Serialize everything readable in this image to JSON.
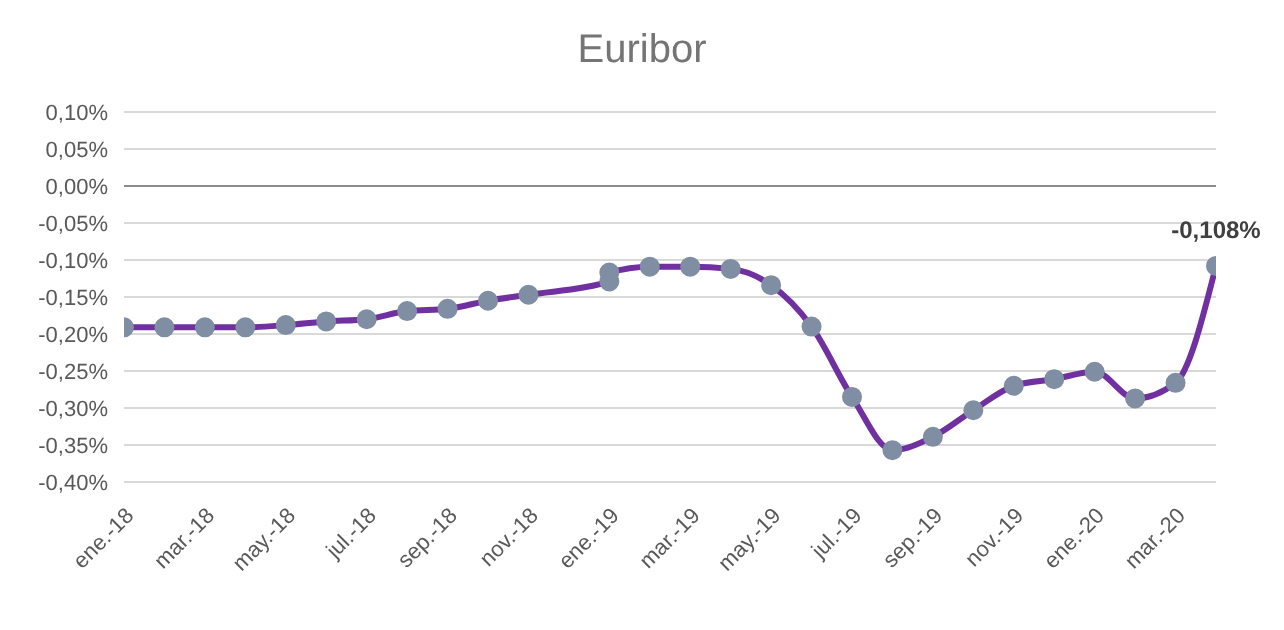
{
  "chart_data": {
    "type": "line",
    "title": "Euribor",
    "x": [
      "2018-01",
      "2018-02",
      "2018-03",
      "2018-04",
      "2018-05",
      "2018-06",
      "2018-07",
      "2018-08",
      "2018-09",
      "2018-10",
      "2018-11",
      "2019-01",
      "2019-01",
      "2019-02",
      "2019-03",
      "2019-04",
      "2019-05",
      "2019-06",
      "2019-07",
      "2019-08",
      "2019-09",
      "2019-10",
      "2019-11",
      "2019-12",
      "2020-01",
      "2020-02",
      "2020-03",
      "2020-04"
    ],
    "series": [
      {
        "color": "#7030a0",
        "values": [
          -0.191,
          -0.191,
          -0.191,
          -0.191,
          -0.188,
          -0.183,
          -0.18,
          -0.169,
          -0.166,
          -0.155,
          -0.147,
          -0.129,
          -0.117,
          -0.109,
          -0.109,
          -0.112,
          -0.134,
          -0.19,
          -0.285,
          -0.357,
          -0.339,
          -0.303,
          -0.27,
          -0.261,
          -0.251,
          -0.287,
          -0.266,
          -0.108
        ],
        "value_labels": [
          null,
          null,
          null,
          null,
          null,
          null,
          null,
          null,
          null,
          null,
          null,
          null,
          null,
          null,
          null,
          null,
          null,
          null,
          null,
          null,
          null,
          null,
          null,
          null,
          null,
          null,
          null,
          "-0,108%"
        ]
      }
    ],
    "xlim": [
      "2018-01",
      "2020-04"
    ],
    "xticks": [
      {
        "value": "2018-01",
        "label": "ene.-18"
      },
      {
        "value": "2018-03",
        "label": "mar.-18"
      },
      {
        "value": "2018-05",
        "label": "may.-18"
      },
      {
        "value": "2018-07",
        "label": "jul.-18"
      },
      {
        "value": "2018-09",
        "label": "sep.-18"
      },
      {
        "value": "2018-11",
        "label": "nov.-18"
      },
      {
        "value": "2019-01",
        "label": "ene.-19"
      },
      {
        "value": "2019-03",
        "label": "mar.-19"
      },
      {
        "value": "2019-05",
        "label": "may.-19"
      },
      {
        "value": "2019-07",
        "label": "jul.-19"
      },
      {
        "value": "2019-09",
        "label": "sep.-19"
      },
      {
        "value": "2019-11",
        "label": "nov.-19"
      },
      {
        "value": "2020-01",
        "label": "ene.-20"
      },
      {
        "value": "2020-03",
        "label": "mar.-20"
      }
    ],
    "ylim": [
      -0.4,
      0.1
    ],
    "yticks": [
      {
        "value": 0.1,
        "label": "0,10%"
      },
      {
        "value": 0.05,
        "label": "0,05%"
      },
      {
        "value": 0,
        "label": "0,00%"
      },
      {
        "value": -0.05,
        "label": "-0,05%"
      },
      {
        "value": -0.1,
        "label": "-0,10%"
      },
      {
        "value": -0.15,
        "label": "-0,15%"
      },
      {
        "value": -0.2,
        "label": "-0,20%"
      },
      {
        "value": -0.25,
        "label": "-0,25%"
      },
      {
        "value": -0.3,
        "label": "-0,30%"
      },
      {
        "value": -0.35,
        "label": "-0,35%"
      },
      {
        "value": -0.4,
        "label": "-0,40%"
      }
    ],
    "grid": "y",
    "marker": "circle",
    "line_style": "solid",
    "legend": false
  }
}
